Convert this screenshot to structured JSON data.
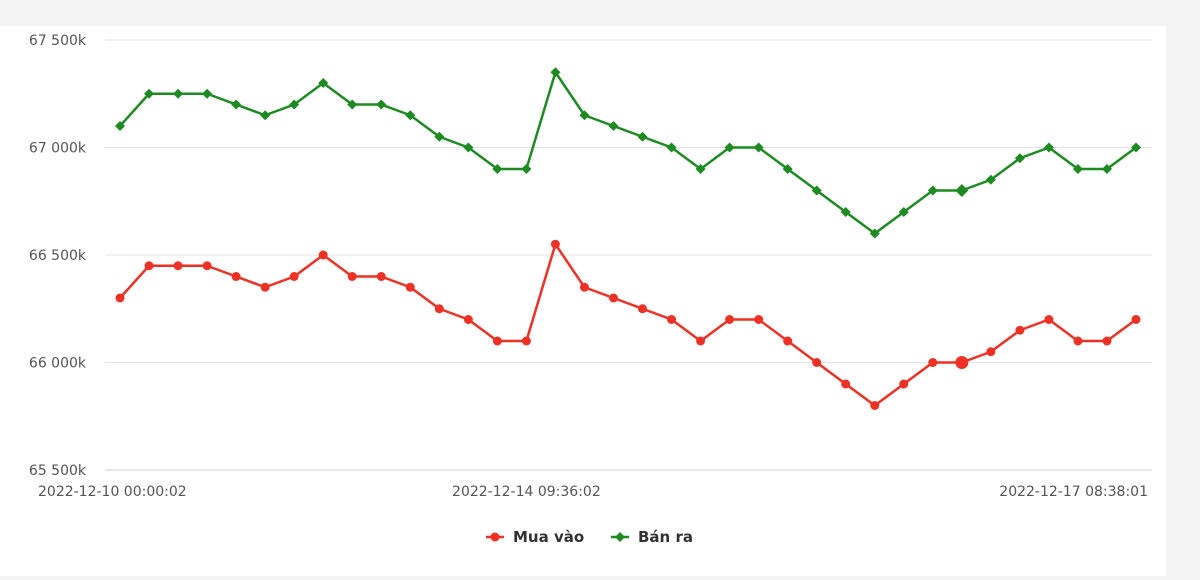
{
  "chart_data": {
    "type": "line",
    "ylim": [
      65500,
      67500
    ],
    "y_ticks": [
      65500,
      66000,
      66500,
      67000,
      67500
    ],
    "y_tick_labels": [
      "65 500k",
      "66 000k",
      "66 500k",
      "67 000k",
      "67 500k"
    ],
    "x_tick_labels": [
      "2022-12-10 00:00:02",
      "2022-12-14 09:36:02",
      "2022-12-17 08:38:01"
    ],
    "x_tick_indices": [
      0,
      14,
      35
    ],
    "grid": true,
    "legend_position": "bottom-center",
    "series": [
      {
        "name": "Mua vào",
        "color": "#ee3124",
        "marker": "circle",
        "values": [
          66300,
          66450,
          66450,
          66450,
          66400,
          66350,
          66400,
          66500,
          66400,
          66400,
          66350,
          66250,
          66200,
          66100,
          66100,
          66550,
          66350,
          66300,
          66250,
          66200,
          66100,
          66200,
          66200,
          66100,
          66000,
          65900,
          65800,
          65900,
          66000,
          66000,
          66050,
          66150,
          66200,
          66100,
          66100,
          66200
        ]
      },
      {
        "name": "Bán ra",
        "color": "#1e8b22",
        "marker": "diamond",
        "values": [
          67100,
          67250,
          67250,
          67250,
          67200,
          67150,
          67200,
          67300,
          67200,
          67200,
          67150,
          67050,
          67000,
          66900,
          66900,
          67350,
          67150,
          67100,
          67050,
          67000,
          66900,
          67000,
          67000,
          66900,
          66800,
          66700,
          66600,
          66700,
          66800,
          66800,
          66850,
          66950,
          67000,
          66900,
          66900,
          67000
        ]
      }
    ],
    "highlighted_index": 29
  }
}
